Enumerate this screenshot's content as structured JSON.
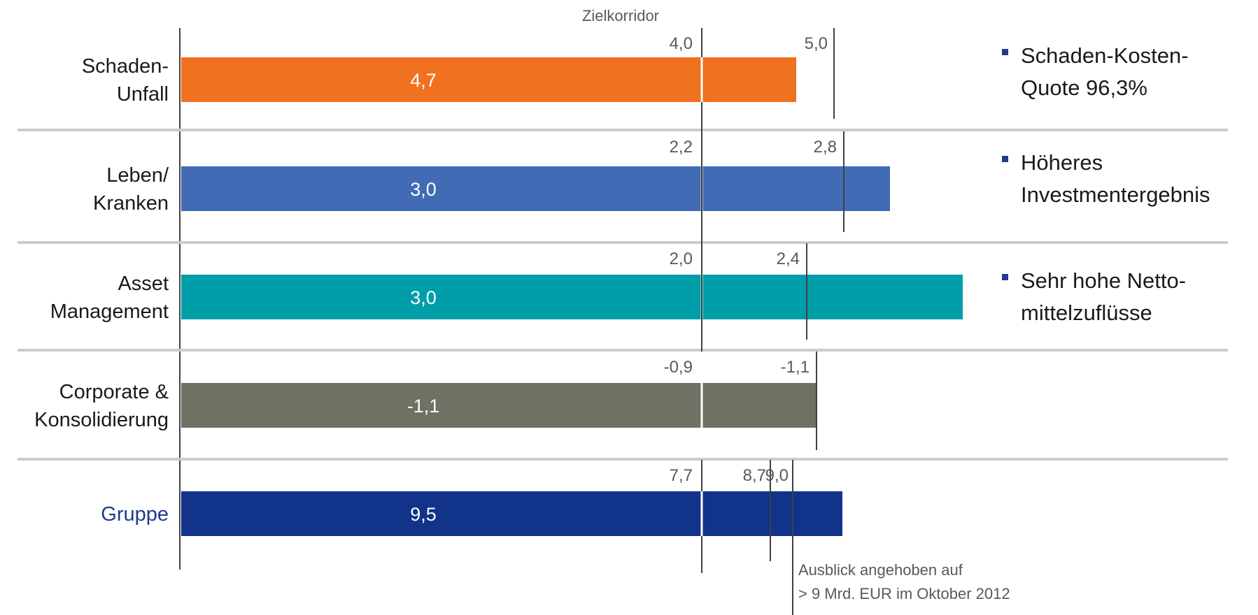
{
  "chart_data": {
    "type": "bar",
    "orientation": "horizontal",
    "reference_label": "Zielkorridor",
    "categories": [
      {
        "label_lines": [
          "Schaden-",
          "Unfall"
        ],
        "value": 4.7,
        "value_label": "4,7",
        "color": "#F07120",
        "targets": [
          {
            "value": 4.0,
            "label": "4,0"
          },
          {
            "value": 5.0,
            "label": "5,0"
          }
        ]
      },
      {
        "label_lines": [
          "Leben/",
          "Kranken"
        ],
        "value": 3.0,
        "value_label": "3,0",
        "color": "#416BB4",
        "targets": [
          {
            "value": 2.2,
            "label": "2,2"
          },
          {
            "value": 2.8,
            "label": "2,8"
          }
        ]
      },
      {
        "label_lines": [
          "Asset",
          "Management"
        ],
        "value": 3.0,
        "value_label": "3,0",
        "color": "#009EA8",
        "targets": [
          {
            "value": 2.0,
            "label": "2,0"
          },
          {
            "value": 2.4,
            "label": "2,4"
          }
        ]
      },
      {
        "label_lines": [
          "Corporate &",
          "Konsolidierung"
        ],
        "value": -1.1,
        "value_label": "-1,1",
        "color": "#6E7263",
        "targets": [
          {
            "value": -0.9,
            "label": "-0,9"
          },
          {
            "value": -1.1,
            "label": "-1,1"
          }
        ]
      },
      {
        "label_lines": [
          "Gruppe"
        ],
        "value": 9.5,
        "value_label": "9,5",
        "color": "#12338A",
        "highlight": true,
        "targets": [
          {
            "value": 7.7,
            "label": "7,7"
          },
          {
            "value": 8.7,
            "label": "8,7"
          },
          {
            "value": 9.0,
            "label": "9,0"
          }
        ]
      }
    ],
    "annotation": [
      "Ausblick angehoben auf",
      "> 9 Mrd. EUR im Oktober 2012"
    ],
    "bullets": [
      {
        "lines": [
          "Schaden-Kosten-",
          "Quote 96,3%"
        ]
      },
      {
        "lines": [
          "Höheres",
          "Investmentergebnis"
        ]
      },
      {
        "lines": [
          "Sehr hohe Netto-",
          "mittelzuflüsse"
        ]
      }
    ],
    "bullet_color": "#1f3a8f",
    "grid": false
  }
}
